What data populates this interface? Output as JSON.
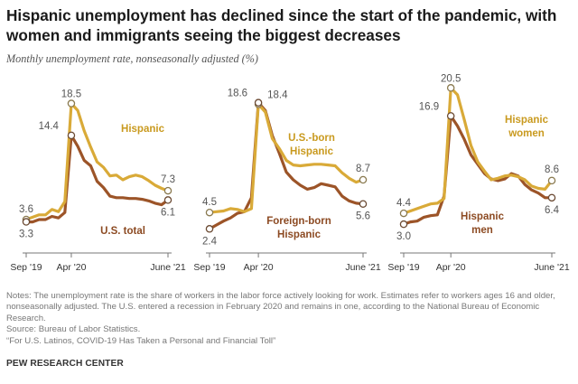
{
  "title": "Hispanic unemployment has declined since the start of the pandemic, with women and immigrants seeing the biggest decreases",
  "subtitle": "Monthly unemployment rate, nonseasonally adjusted (%)",
  "colors": {
    "gold": "#d9aa38",
    "brown": "#9c5428",
    "gold_label": "#c99a1f",
    "brown_label": "#8c4a22",
    "axis": "#777777",
    "value_label": "#555555"
  },
  "chart_data": [
    {
      "type": "line",
      "x_tick_labels": [
        "Sep '19",
        "Apr '20",
        "June '21"
      ],
      "ylim": [
        0,
        22
      ],
      "grid": false,
      "series": [
        {
          "name": "Hispanic",
          "color": "#d9aa38",
          "values": [
            3.6,
            3.9,
            4.2,
            4.2,
            4.9,
            4.6,
            5.9,
            18.5,
            17.6,
            15.0,
            12.9,
            11.0,
            10.3,
            9.2,
            9.3,
            8.7,
            9.1,
            9.3,
            9.1,
            8.6,
            8.0,
            7.6,
            7.3
          ]
        },
        {
          "name": "U.S. total",
          "color": "#9c5428",
          "values": [
            3.3,
            3.3,
            3.6,
            3.6,
            4.0,
            3.8,
            4.5,
            14.4,
            13.0,
            11.2,
            10.5,
            8.5,
            7.7,
            6.6,
            6.4,
            6.4,
            6.3,
            6.3,
            6.2,
            6.0,
            5.7,
            5.5,
            6.1
          ]
        }
      ],
      "labels": {
        "series_a": "Hispanic",
        "series_b": "U.S. total",
        "peak_a": "18.5",
        "peak_b": "14.4",
        "start_a": "3.6",
        "start_b": "3.3",
        "end_a": "7.3",
        "end_b": "6.1"
      }
    },
    {
      "type": "line",
      "x_tick_labels": [
        "Sep '19",
        "Apr '20",
        "June '21"
      ],
      "ylim": [
        0,
        22
      ],
      "grid": false,
      "series": [
        {
          "name": "U.S.-born Hispanic",
          "color": "#d9aa38",
          "values": [
            4.5,
            4.6,
            4.7,
            5.0,
            4.9,
            4.6,
            5.0,
            18.4,
            17.4,
            14.0,
            12.7,
            11.2,
            10.6,
            10.5,
            10.6,
            10.7,
            10.7,
            10.6,
            10.5,
            9.6,
            8.9,
            8.4,
            8.7
          ]
        },
        {
          "name": "Foreign-born Hispanic",
          "color": "#9c5428",
          "values": [
            2.4,
            2.9,
            3.4,
            3.8,
            4.4,
            4.6,
            6.4,
            18.6,
            17.6,
            14.4,
            12.1,
            9.7,
            8.7,
            8.0,
            7.5,
            7.7,
            8.2,
            8.0,
            7.8,
            6.6,
            6.0,
            5.7,
            5.6
          ]
        }
      ],
      "labels": {
        "series_a": "U.S.-born Hispanic",
        "series_a_lines": [
          "U.S.-born",
          "Hispanic"
        ],
        "series_b": "Foreign-born Hispanic",
        "series_b_lines": [
          "Foreign-born",
          "Hispanic"
        ],
        "peak_a": "18.4",
        "peak_b": "18.6",
        "start_a": "4.5",
        "start_b": "2.4",
        "end_a": "8.7",
        "end_b": "5.6"
      }
    },
    {
      "type": "line",
      "x_tick_labels": [
        "Sep '19",
        "Apr '20",
        "June '21"
      ],
      "ylim": [
        0,
        22
      ],
      "grid": false,
      "series": [
        {
          "name": "Hispanic women",
          "color": "#d9aa38",
          "values": [
            4.4,
            4.7,
            5.0,
            5.3,
            5.6,
            5.7,
            6.3,
            20.5,
            19.6,
            16.4,
            13.1,
            11.0,
            9.8,
            8.7,
            8.9,
            9.2,
            9.3,
            9.1,
            8.7,
            7.9,
            7.6,
            7.5,
            8.6
          ]
        },
        {
          "name": "Hispanic men",
          "color": "#9c5428",
          "values": [
            3.0,
            3.3,
            3.4,
            3.9,
            4.1,
            4.2,
            6.6,
            16.9,
            15.6,
            13.9,
            11.9,
            10.7,
            9.5,
            8.8,
            8.6,
            8.8,
            9.5,
            9.2,
            8.1,
            7.4,
            7.0,
            6.4,
            6.4
          ]
        }
      ],
      "labels": {
        "series_a": "Hispanic women",
        "series_a_lines": [
          "Hispanic",
          "women"
        ],
        "series_b": "Hispanic men",
        "series_b_lines": [
          "Hispanic",
          "men"
        ],
        "peak_a": "20.5",
        "peak_b": "16.9",
        "start_a": "4.4",
        "start_b": "3.0",
        "end_a": "8.6",
        "end_b": "6.4"
      }
    }
  ],
  "notes": {
    "line1": "Notes: The unemployment rate is the share of workers in the labor force actively looking for work. Estimates refer to workers ages 16 and older, nonseasonally adjusted. The U.S. entered a recession in February 2020 and remains in one, according to the National Bureau of Economic Research.",
    "line2": "Source: Bureau of Labor Statistics.",
    "line3": "“For U.S. Latinos, COVID-19 Has Taken a Personal and Financial Toll”"
  },
  "footer": "PEW RESEARCH CENTER"
}
